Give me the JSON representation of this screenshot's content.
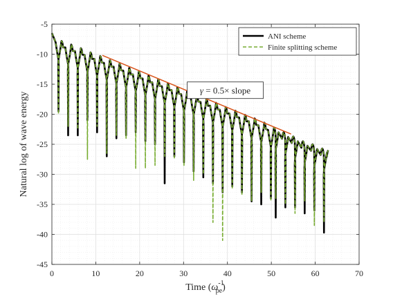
{
  "chart_data": {
    "type": "line",
    "xlabel": "Time (ω_pe^-1)",
    "xlabel_parts": {
      "base": "Time (",
      "symbol": "ω",
      "sub": "pe",
      "sup": "-1",
      "close": ")"
    },
    "ylabel": "Natural log of wave energy",
    "xlim": [
      0,
      70
    ],
    "ylim": [
      -45,
      -5
    ],
    "xticks": [
      "0",
      "10",
      "20",
      "30",
      "40",
      "50",
      "60",
      "70"
    ],
    "yticks": [
      "-5",
      "-10",
      "-15",
      "-20",
      "-25",
      "-30",
      "-35",
      "-40",
      "-45"
    ],
    "grid": true,
    "minor_grid": true,
    "legend_position": "top-right",
    "oscillation_period": 2.2,
    "series": [
      {
        "name": "ANI scheme",
        "color": "#000000",
        "style": "solid",
        "peaks": [
          [
            0.0,
            -6.5
          ],
          [
            2.2,
            -7.8
          ],
          [
            4.4,
            -8.4
          ],
          [
            6.6,
            -9.0
          ],
          [
            8.8,
            -9.7
          ],
          [
            11.0,
            -10.3
          ],
          [
            13.2,
            -11.0
          ],
          [
            15.4,
            -11.6
          ],
          [
            17.6,
            -12.3
          ],
          [
            19.8,
            -12.9
          ],
          [
            22.0,
            -13.6
          ],
          [
            24.2,
            -14.2
          ],
          [
            26.4,
            -14.9
          ],
          [
            28.6,
            -15.5
          ],
          [
            30.8,
            -16.2
          ],
          [
            33.0,
            -16.8
          ],
          [
            35.2,
            -17.5
          ],
          [
            37.4,
            -18.1
          ],
          [
            39.6,
            -18.8
          ],
          [
            41.8,
            -19.4
          ],
          [
            44.0,
            -20.1
          ],
          [
            46.2,
            -20.7
          ],
          [
            48.4,
            -21.4
          ],
          [
            50.6,
            -22.2
          ],
          [
            52.8,
            -23.0
          ],
          [
            55.0,
            -23.7
          ],
          [
            57.2,
            -24.5
          ],
          [
            59.4,
            -25.0
          ],
          [
            61.6,
            -25.7
          ],
          [
            63.0,
            -26.0
          ]
        ],
        "troughs": [
          [
            1.5,
            -19.5
          ],
          [
            3.7,
            -23.5
          ],
          [
            5.9,
            -23.5
          ],
          [
            8.1,
            -21.0
          ],
          [
            10.3,
            -23.0
          ],
          [
            12.5,
            -27.0
          ],
          [
            14.7,
            -24.0
          ],
          [
            16.9,
            -23.5
          ],
          [
            19.1,
            -23.0
          ],
          [
            21.3,
            -24.5
          ],
          [
            23.5,
            -25.0
          ],
          [
            25.7,
            -31.5
          ],
          [
            27.9,
            -27.0
          ],
          [
            30.1,
            -28.0
          ],
          [
            32.3,
            -29.5
          ],
          [
            34.5,
            -30.5
          ],
          [
            36.7,
            -31.5
          ],
          [
            38.9,
            -33.0
          ],
          [
            41.1,
            -32.0
          ],
          [
            43.3,
            -33.0
          ],
          [
            45.5,
            -34.5
          ],
          [
            47.7,
            -35.0
          ],
          [
            49.9,
            -34.0
          ],
          [
            51.0,
            -37.2
          ],
          [
            53.2,
            -35.5
          ],
          [
            55.4,
            -35.5
          ],
          [
            57.6,
            -36.5
          ],
          [
            59.8,
            -36.0
          ],
          [
            62.0,
            -39.7
          ]
        ]
      },
      {
        "name": "Finite splitting scheme",
        "color": "#77ac30",
        "style": "dashed",
        "peaks": [
          [
            0.0,
            -6.5
          ],
          [
            2.2,
            -7.8
          ],
          [
            4.4,
            -8.4
          ],
          [
            6.6,
            -9.0
          ],
          [
            8.8,
            -9.7
          ],
          [
            11.0,
            -10.3
          ],
          [
            13.2,
            -11.0
          ],
          [
            15.4,
            -11.6
          ],
          [
            17.6,
            -12.3
          ],
          [
            19.8,
            -12.9
          ],
          [
            22.0,
            -13.6
          ],
          [
            24.2,
            -14.2
          ],
          [
            26.4,
            -14.9
          ],
          [
            28.6,
            -15.5
          ],
          [
            30.8,
            -16.2
          ],
          [
            33.0,
            -16.8
          ],
          [
            35.2,
            -17.5
          ],
          [
            37.4,
            -18.1
          ],
          [
            39.6,
            -18.8
          ],
          [
            41.8,
            -19.4
          ],
          [
            44.0,
            -20.1
          ],
          [
            46.2,
            -20.7
          ],
          [
            48.4,
            -21.4
          ],
          [
            50.6,
            -22.2
          ],
          [
            52.8,
            -23.0
          ],
          [
            55.0,
            -23.7
          ],
          [
            57.2,
            -24.5
          ],
          [
            59.4,
            -25.0
          ],
          [
            61.6,
            -25.7
          ],
          [
            63.0,
            -26.0
          ]
        ],
        "troughs": [
          [
            1.5,
            -20.0
          ],
          [
            3.7,
            -22.0
          ],
          [
            5.9,
            -22.5
          ],
          [
            8.1,
            -27.5
          ],
          [
            10.3,
            -22.0
          ],
          [
            12.5,
            -26.5
          ],
          [
            14.7,
            -23.5
          ],
          [
            16.9,
            -24.0
          ],
          [
            19.1,
            -29.0
          ],
          [
            21.3,
            -29.0
          ],
          [
            23.5,
            -28.5
          ],
          [
            25.7,
            -27.0
          ],
          [
            27.9,
            -27.5
          ],
          [
            30.1,
            -28.5
          ],
          [
            32.3,
            -31.0
          ],
          [
            34.5,
            -30.0
          ],
          [
            36.7,
            -38.0
          ],
          [
            38.9,
            -41.0
          ],
          [
            41.1,
            -32.5
          ],
          [
            43.3,
            -33.5
          ],
          [
            45.5,
            -34.5
          ],
          [
            47.7,
            -33.0
          ],
          [
            49.9,
            -34.5
          ],
          [
            51.0,
            -34.0
          ],
          [
            53.2,
            -35.0
          ],
          [
            55.4,
            -36.5
          ],
          [
            57.6,
            -34.5
          ],
          [
            59.8,
            -38.5
          ],
          [
            62.0,
            -38.0
          ]
        ]
      }
    ],
    "fit_line": {
      "color": "#d95319",
      "points": [
        [
          11.5,
          -10.2
        ],
        [
          54.5,
          -23.3
        ]
      ]
    },
    "annotations": [
      {
        "text_parts": {
          "symbol": "γ",
          "rest": " = 0.5× slope"
        },
        "x": 39.5,
        "y": -16.0
      }
    ]
  }
}
